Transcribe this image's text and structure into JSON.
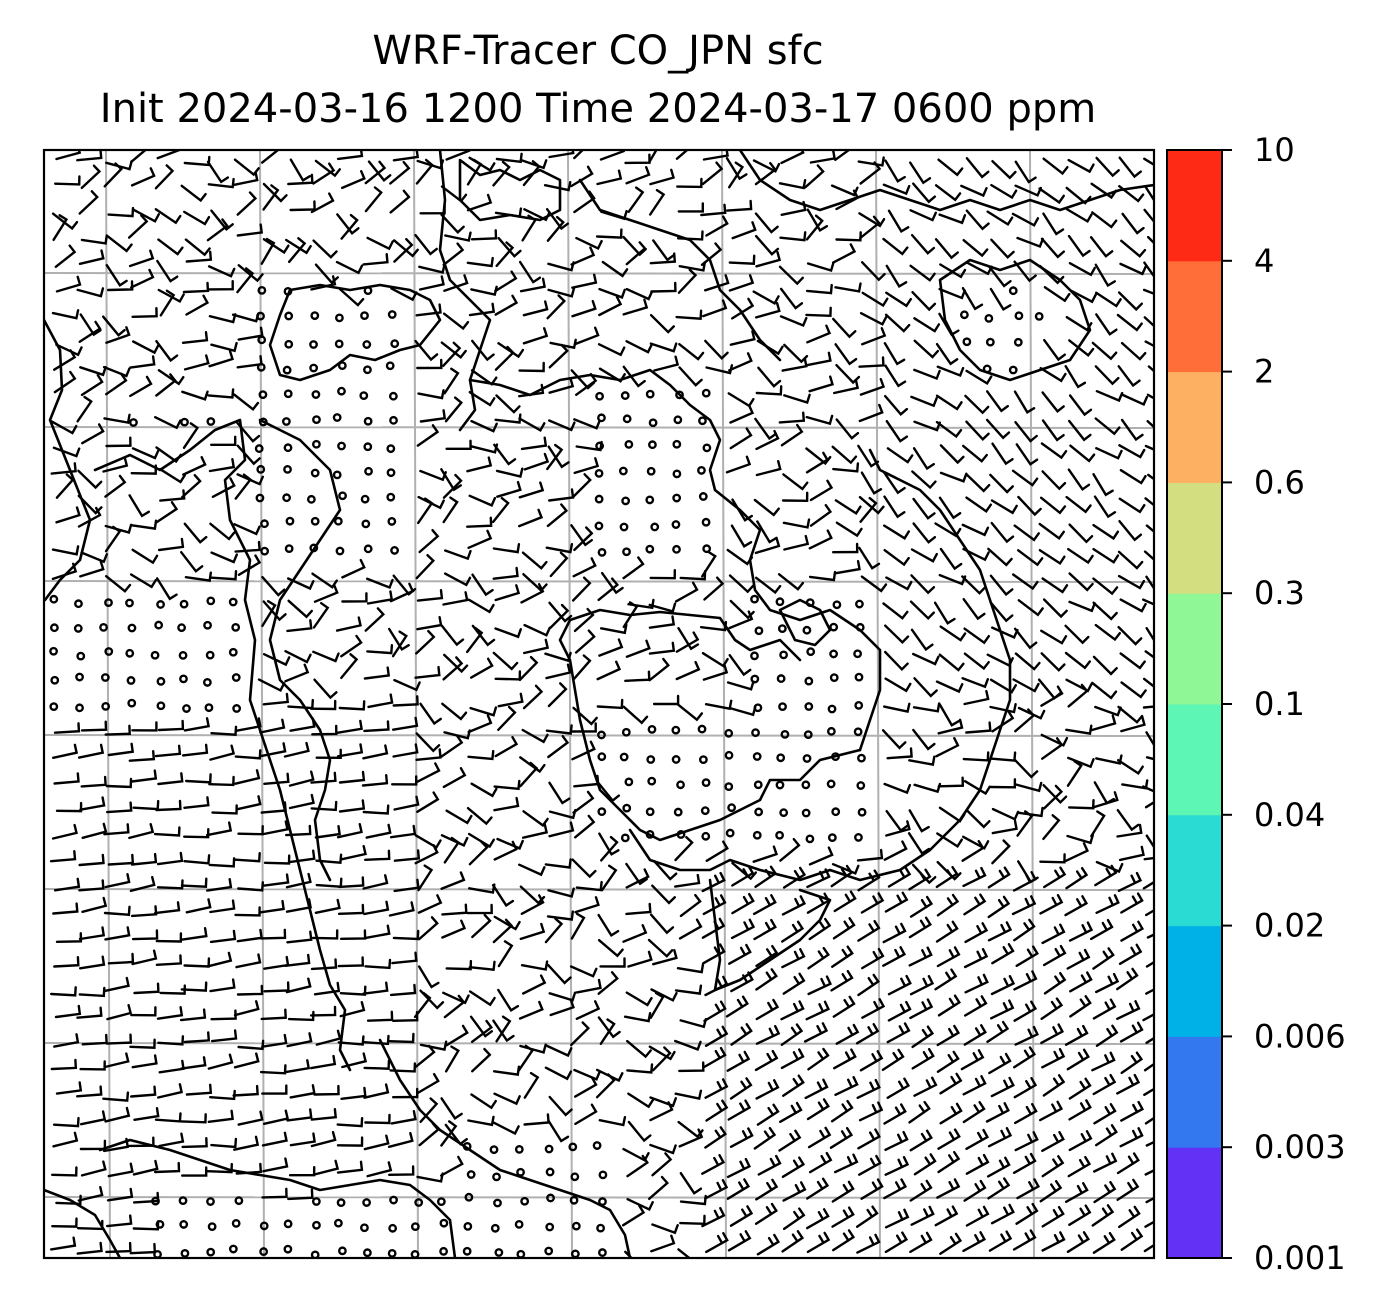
{
  "title": {
    "line1": "WRF-Tracer CO_JPN sfc",
    "line2": "Init 2024-03-16 1200 Time 2024-03-17 0600 ppm"
  },
  "colorbar": {
    "levels": [
      "0.001",
      "0.003",
      "0.006",
      "0.02",
      "0.04",
      "0.1",
      "0.3",
      "0.6",
      "2",
      "4",
      "10"
    ],
    "colors": [
      "#6331f6",
      "#3478f0",
      "#00b1e8",
      "#2adbd3",
      "#5ef6b4",
      "#8ff795",
      "#d3de80",
      "#fdaf62",
      "#ff6e38",
      "#ff2a15"
    ]
  },
  "map": {
    "grid": "on",
    "grid_color": "#b0b0b0",
    "coastline_color": "#000000",
    "field_fill": "none (all values below 0.001 ppm)",
    "overlay": "wind barbs"
  }
}
